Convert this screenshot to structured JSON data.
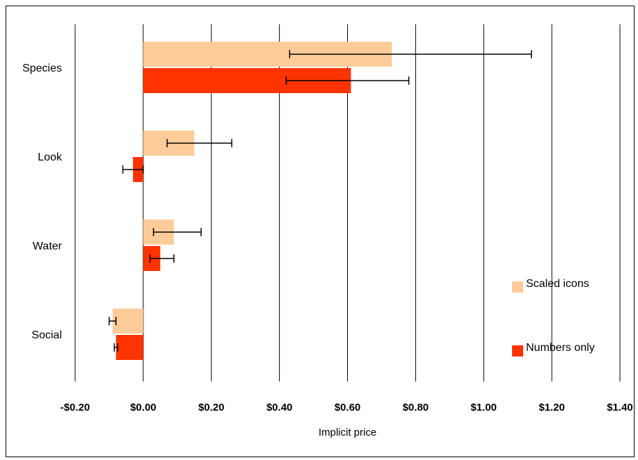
{
  "chart_data": {
    "type": "bar",
    "orientation": "horizontal",
    "categories": [
      "Species",
      "Look",
      "Water",
      "Social"
    ],
    "series": [
      {
        "name": "Scaled icons",
        "color": "#FFCC99",
        "values": [
          0.73,
          0.15,
          0.09,
          -0.09
        ],
        "error_low": [
          0.43,
          0.07,
          0.03,
          -0.1
        ],
        "error_high": [
          1.14,
          0.26,
          0.17,
          -0.08
        ]
      },
      {
        "name": "Numbers only",
        "color": "#FF3300",
        "values": [
          0.61,
          -0.03,
          0.05,
          -0.08
        ],
        "error_low": [
          0.42,
          -0.06,
          0.02,
          -0.085
        ],
        "error_high": [
          0.78,
          0.0,
          0.09,
          -0.075
        ]
      }
    ],
    "xlabel": "Implicit price",
    "xlim": [
      -0.2,
      1.4
    ],
    "x_ticks": [
      -0.2,
      0.0,
      0.2,
      0.4,
      0.6,
      0.8,
      1.0,
      1.2,
      1.4
    ],
    "x_tick_labels": [
      "-$0.20",
      "$0.00",
      "$0.20",
      "$0.40",
      "$0.60",
      "$0.80",
      "$1.00",
      "$1.20",
      "$1.40"
    ],
    "grid": "vertical",
    "legend_position": "bottom-right"
  }
}
